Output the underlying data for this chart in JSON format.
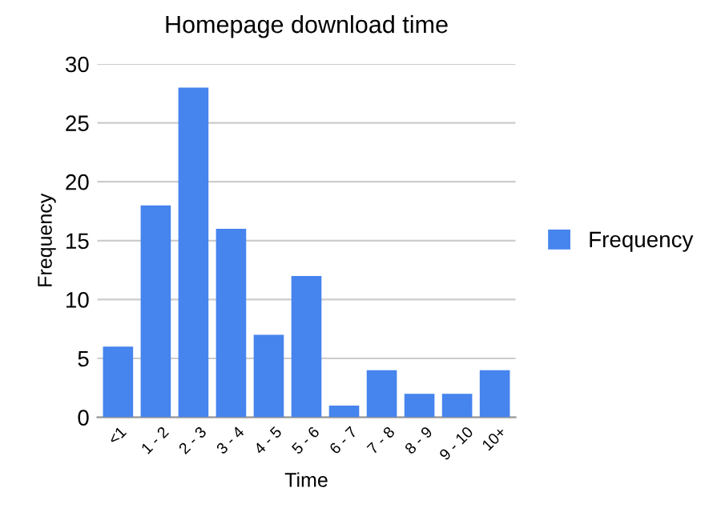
{
  "chart_data": {
    "type": "bar",
    "title": "Homepage download time",
    "xlabel": "Time",
    "ylabel": "Frequency",
    "categories": [
      "<1",
      "1 - 2",
      "2 - 3",
      "3 - 4",
      "4 - 5",
      "5 - 6",
      "6 - 7",
      "7 - 8",
      "8 - 9",
      "9 - 10",
      "10+"
    ],
    "series": [
      {
        "name": "Frequency",
        "color": "#4684ee",
        "values": [
          6,
          18,
          28,
          16,
          7,
          12,
          1,
          4,
          2,
          2,
          4
        ]
      }
    ],
    "ylim": [
      0,
      30
    ],
    "yticks": [
      0,
      5,
      10,
      15,
      20,
      25,
      30
    ],
    "grid": "y",
    "legend": "right"
  }
}
